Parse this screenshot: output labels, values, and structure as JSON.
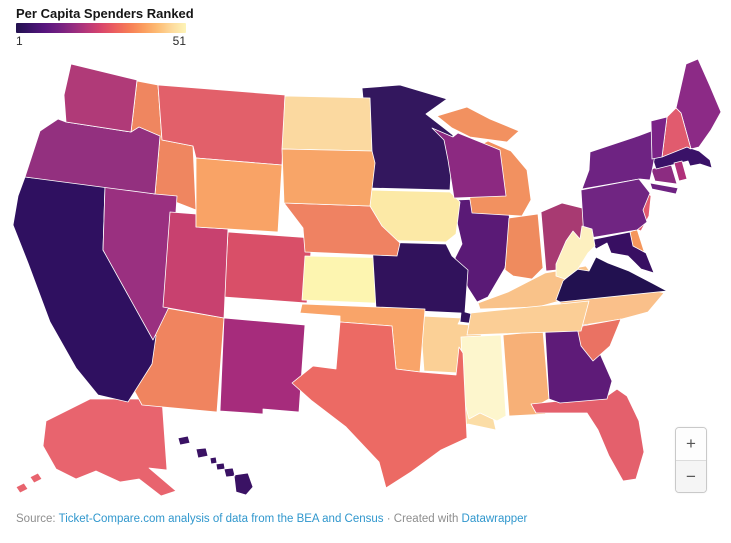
{
  "title": "Per Capita Spenders Ranked",
  "legend": {
    "min_label": "1",
    "max_label": "51",
    "gradient_stops": [
      "#21114e",
      "#3b1368",
      "#57157e",
      "#711f81",
      "#932b80",
      "#b73779",
      "#d8456c",
      "#ec5f5f",
      "#f67d56",
      "#fb9d5e",
      "#fdbc74",
      "#fdda9c",
      "#fdf4b8"
    ]
  },
  "zoom_controls": {
    "zoom_in": "+",
    "zoom_out": "−"
  },
  "footer": {
    "source_prefix": "Source: ",
    "source_link_text": "Ticket-Compare.com analysis of data from the BEA and Census",
    "separator": " · ",
    "created_text": "Created with ",
    "tool_link_text": "Datawrapper"
  },
  "colors": {
    "link": "#3097cd",
    "title_text": "#161616",
    "muted_text": "#8e8e8e",
    "state_border": "#ffffff"
  },
  "chart_data": {
    "type": "choropleth",
    "title": "Per Capita Spenders Ranked",
    "scale": {
      "min": 1,
      "max": 51,
      "low_color": "#21114e",
      "high_color": "#fdf4b8"
    },
    "states": [
      {
        "id": "AL",
        "name": "Alabama",
        "color": "#f7b077"
      },
      {
        "id": "AK",
        "name": "Alaska",
        "color": "#e8646e"
      },
      {
        "id": "AZ",
        "name": "Arizona",
        "color": "#f0845f"
      },
      {
        "id": "AR",
        "name": "Arkansas",
        "color": "#fbd096"
      },
      {
        "id": "CA",
        "name": "California",
        "color": "#2f1060"
      },
      {
        "id": "CO",
        "name": "Colorado",
        "color": "#d94f68"
      },
      {
        "id": "CT",
        "name": "Connecticut",
        "color": "#8c2c81"
      },
      {
        "id": "DE",
        "name": "Delaware",
        "color": "#f5975c"
      },
      {
        "id": "FL",
        "name": "Florida",
        "color": "#e4606c"
      },
      {
        "id": "GA",
        "name": "Georgia",
        "color": "#5e1b78"
      },
      {
        "id": "HI",
        "name": "Hawaii",
        "color": "#3a1264"
      },
      {
        "id": "ID",
        "name": "Idaho",
        "color": "#ef8660"
      },
      {
        "id": "IL",
        "name": "Illinois",
        "color": "#5a1a76"
      },
      {
        "id": "IN",
        "name": "Indiana",
        "color": "#ef8b5e"
      },
      {
        "id": "IA",
        "name": "Iowa",
        "color": "#fce9a6"
      },
      {
        "id": "KS",
        "name": "Kansas",
        "color": "#fdf5b0"
      },
      {
        "id": "KY",
        "name": "Kentucky",
        "color": "#f9c289"
      },
      {
        "id": "LA",
        "name": "Louisiana",
        "color": "#fbdda6"
      },
      {
        "id": "ME",
        "name": "Maine",
        "color": "#8c2a86"
      },
      {
        "id": "MD",
        "name": "Maryland",
        "color": "#380f62"
      },
      {
        "id": "MA",
        "name": "Massachusetts",
        "color": "#3a1268"
      },
      {
        "id": "MI",
        "name": "Michigan",
        "color": "#f29160"
      },
      {
        "id": "MN",
        "name": "Minnesota",
        "color": "#33175e"
      },
      {
        "id": "MS",
        "name": "Mississippi",
        "color": "#fdf6cd"
      },
      {
        "id": "MO",
        "name": "Missouri",
        "color": "#31125c"
      },
      {
        "id": "MT",
        "name": "Montana",
        "color": "#e2606a"
      },
      {
        "id": "NE",
        "name": "Nebraska",
        "color": "#ef8262"
      },
      {
        "id": "NV",
        "name": "Nevada",
        "color": "#9a3080"
      },
      {
        "id": "NH",
        "name": "New Hampshire",
        "color": "#e15b6e"
      },
      {
        "id": "NJ",
        "name": "New Jersey",
        "color": "#e35a6e"
      },
      {
        "id": "NM",
        "name": "New Mexico",
        "color": "#a62c7c"
      },
      {
        "id": "NY",
        "name": "New York",
        "color": "#6e2382"
      },
      {
        "id": "NC",
        "name": "North Carolina",
        "color": "#fac08a"
      },
      {
        "id": "ND",
        "name": "North Dakota",
        "color": "#fbd9a0"
      },
      {
        "id": "OH",
        "name": "Ohio",
        "color": "#a83a72"
      },
      {
        "id": "OK",
        "name": "Oklahoma",
        "color": "#f9a469"
      },
      {
        "id": "OR",
        "name": "Oregon",
        "color": "#93307f"
      },
      {
        "id": "PA",
        "name": "Pennsylvania",
        "color": "#702582"
      },
      {
        "id": "RI",
        "name": "Rhode Island",
        "color": "#b0307a"
      },
      {
        "id": "SC",
        "name": "South Carolina",
        "color": "#ea7263"
      },
      {
        "id": "SD",
        "name": "South Dakota",
        "color": "#f8a568"
      },
      {
        "id": "TN",
        "name": "Tennessee",
        "color": "#fbce96"
      },
      {
        "id": "TX",
        "name": "Texas",
        "color": "#ec6a64"
      },
      {
        "id": "UT",
        "name": "Utah",
        "color": "#c8416f"
      },
      {
        "id": "VT",
        "name": "Vermont",
        "color": "#7b2387"
      },
      {
        "id": "VA",
        "name": "Virginia",
        "color": "#221150"
      },
      {
        "id": "WA",
        "name": "Washington",
        "color": "#b03a78"
      },
      {
        "id": "WV",
        "name": "West Virginia",
        "color": "#fdf0c0"
      },
      {
        "id": "WI",
        "name": "Wisconsin",
        "color": "#8c2981"
      },
      {
        "id": "WY",
        "name": "Wyoming",
        "color": "#f9a366"
      }
    ]
  }
}
